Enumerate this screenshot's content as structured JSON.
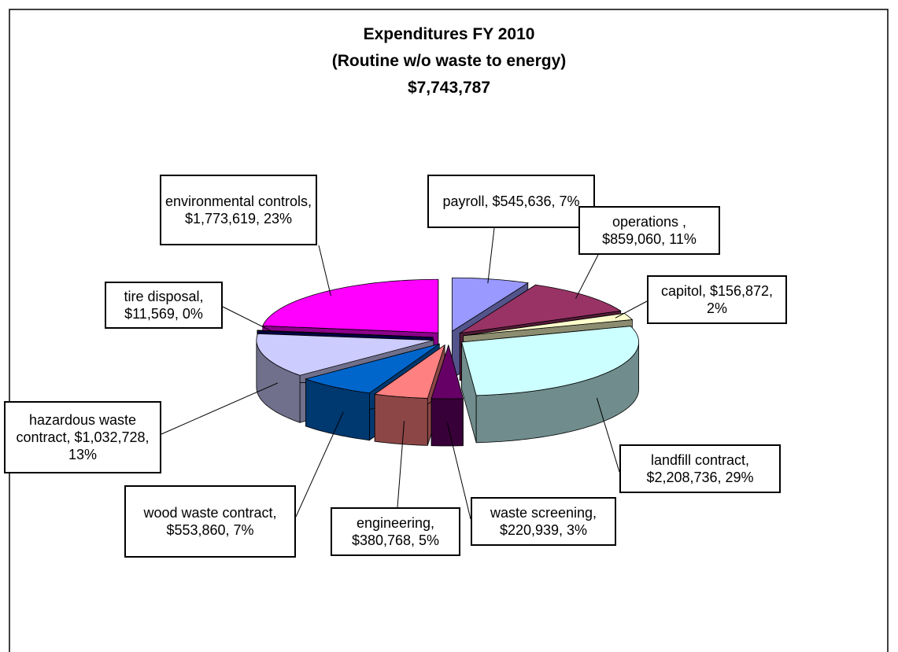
{
  "chart_data": {
    "type": "pie3d",
    "title": "Expenditures FY 2010",
    "subtitle": "(Routine w/o waste to energy)",
    "total": 7743787,
    "total_label": "$7,743,787",
    "values": [
      545636,
      859060,
      156872,
      2208736,
      220939,
      380768,
      553860,
      1032728,
      11569,
      1773619
    ],
    "value_labels": [
      "payroll, $545,636, 7%",
      "operations , $859,060, 11%",
      "capitol, $156,872, 2%",
      "landfill contract, $2,208,736, 29%",
      "waste screening, $220,939, 3%",
      "engineering, $380,768, 5%",
      "wood waste contract, $553,860, 7%",
      "hazardous waste contract, $1,032,728, 13%",
      "tire disposal, $11,569, 0%",
      "environmental controls, $1,773,619, 23%"
    ],
    "colors": [
      "#9999ff",
      "#993366",
      "#ffffcc",
      "#ccffff",
      "#660066",
      "#ff8080",
      "#0066cc",
      "#ccccff",
      "#000080",
      "#ff00ff"
    ]
  }
}
